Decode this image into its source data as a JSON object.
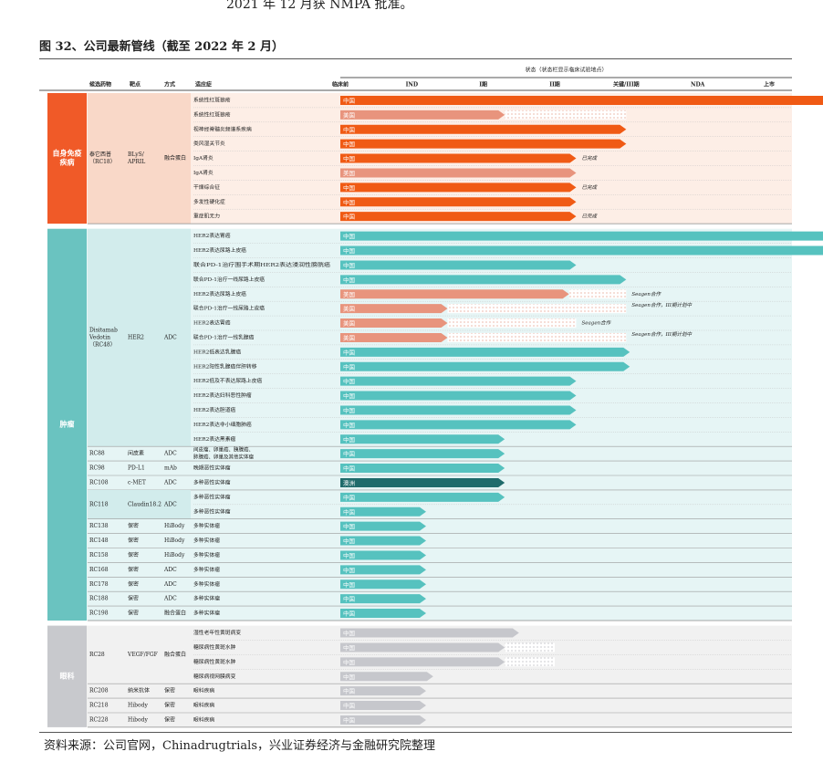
{
  "intro_text": "2021 年 12 月获 NMPA 批准。",
  "figure_title": "图 32、公司最新管线（截至 2022 年 2 月）",
  "source_note": "资料来源：公司官网，Chinadrugtrials，兴业证券经济与金融研究院整理",
  "colors": {
    "autoimmune_band": "#fdeee6",
    "oncology_band": "#e6f5f5",
    "ophthalmology_band": "#f1f1f1",
    "category_autoimmune": "#f05a28",
    "category_oncology": "#6ac3c0",
    "category_ophthalmology": "#c8c9cd",
    "china_orange": "#f05a14",
    "china_teal": "#56c2bf",
    "us_salmon": "#e8947d",
    "australia_dark": "#1f6b6b",
    "china_grey": "#c6c7cc"
  },
  "chart_data": {
    "type": "table",
    "headers": {
      "candidate": "候选药物",
      "target": "靶点",
      "modality": "方式",
      "indication": "适应症",
      "status_title": "状态（状态栏显示临床试验地点）"
    },
    "phases": [
      "临床前",
      "IND",
      "I期",
      "II期",
      "关键/III期",
      "NDA",
      "上市"
    ],
    "categories": [
      {
        "name": "自身免疫疾病",
        "color_key": "category_autoimmune",
        "drug_groups": [
          {
            "candidate": "泰它西普\n（RC18）",
            "target": "BLyS/\nAPRIL",
            "modality": "融合蛋白",
            "rows": [
              {
                "indication": "系统性红斑狼疮",
                "region": "中国",
                "progress": 6.9,
                "color_key": "china_orange"
              },
              {
                "indication": "系统性红斑狼疮",
                "region": "美国",
                "progress": 2.3,
                "planned": 4.0,
                "color_key": "us_salmon"
              },
              {
                "indication": "视神经脊髓炎频谱系疾病",
                "region": "中国",
                "progress": 4.0,
                "color_key": "china_orange"
              },
              {
                "indication": "类风湿关节炎",
                "region": "中国",
                "progress": 4.0,
                "color_key": "china_orange"
              },
              {
                "indication": "IgA肾炎",
                "region": "中国",
                "progress": 3.3,
                "color_key": "china_orange",
                "note": "已完成"
              },
              {
                "indication": "IgA肾炎",
                "region": "美国",
                "progress": 3.3,
                "color_key": "us_salmon"
              },
              {
                "indication": "干燥综合征",
                "region": "中国",
                "progress": 3.3,
                "color_key": "china_orange",
                "note": "已完成"
              },
              {
                "indication": "多发性硬化症",
                "region": "中国",
                "progress": 3.3,
                "color_key": "china_orange"
              },
              {
                "indication": "重症肌无力",
                "region": "中国",
                "progress": 3.3,
                "color_key": "china_orange",
                "note": "已完成"
              }
            ]
          }
        ]
      },
      {
        "name": "肿瘤",
        "color_key": "category_oncology",
        "drug_groups": [
          {
            "candidate": "Disitamab\nVedotin\n（RC48）",
            "target": "HER2",
            "modality": "ADC",
            "rows": [
              {
                "indication": "HER2表达胃癌",
                "region": "中国",
                "progress": 6.95,
                "color_key": "china_teal"
              },
              {
                "indication": "HER2表达尿路上皮癌",
                "region": "中国",
                "progress": 6.95,
                "color_key": "china_teal"
              },
              {
                "indication": "联合PD-1治疗围手术期HER2表达浸润性膀胱癌",
                "region": "中国",
                "progress": 3.3,
                "color_key": "china_teal"
              },
              {
                "indication": "联合PD-1治疗一线尿路上皮癌",
                "region": "中国",
                "progress": 4.0,
                "color_key": "china_teal"
              },
              {
                "indication": "HER2表达尿路上皮癌",
                "region": "美国",
                "progress": 3.2,
                "planned": 4.0,
                "color_key": "us_salmon",
                "note": "Seagen合作"
              },
              {
                "indication": "联合PD-1治疗一线尿路上皮癌",
                "region": "美国",
                "progress": 1.5,
                "planned": 4.0,
                "color_key": "us_salmon",
                "note": "Seagen合作，III期计划中"
              },
              {
                "indication": "HER2表达胃癌",
                "region": "美国",
                "progress": 1.5,
                "planned": 3.3,
                "color_key": "us_salmon",
                "note": "Seagen合作"
              },
              {
                "indication": "联合PD-1治疗一线乳腺癌",
                "region": "美国",
                "progress": 1.5,
                "planned": 4.0,
                "color_key": "us_salmon",
                "note": "Seagen合作，III期计划中"
              },
              {
                "indication": "HER2低表达乳腺癌",
                "region": "中国",
                "progress": 4.05,
                "color_key": "china_teal"
              },
              {
                "indication": "HER2阳性乳腺癌伴肝转移",
                "region": "中国",
                "progress": 4.05,
                "color_key": "china_teal"
              },
              {
                "indication": "HER2低及不表达尿路上皮癌",
                "region": "中国",
                "progress": 3.3,
                "color_key": "china_teal"
              },
              {
                "indication": "HER2表达妇科恶性肿瘤",
                "region": "中国",
                "progress": 3.3,
                "color_key": "china_teal"
              },
              {
                "indication": "HER2表达胆道癌",
                "region": "中国",
                "progress": 3.3,
                "color_key": "china_teal"
              },
              {
                "indication": "HER2表达非小细胞肺癌",
                "region": "中国",
                "progress": 3.3,
                "color_key": "china_teal"
              },
              {
                "indication": "HER2表达黑素瘤",
                "region": "中国",
                "progress": 2.3,
                "color_key": "china_teal"
              }
            ]
          },
          {
            "candidate": "RC88",
            "target": "间皮素",
            "modality": "ADC",
            "rows": [
              {
                "indication": "间皮瘤、卵巢癌、胰腺癌、肺腺癌、卵巢及其他实体瘤",
                "region": "中国",
                "progress": 2.3,
                "color_key": "china_teal"
              }
            ]
          },
          {
            "candidate": "RC98",
            "target": "PD-L1",
            "modality": "mAb",
            "rows": [
              {
                "indication": "晚期恶性实体瘤",
                "region": "中国",
                "progress": 2.3,
                "color_key": "china_teal"
              }
            ]
          },
          {
            "candidate": "RC108",
            "target": "c-MET",
            "modality": "ADC",
            "rows": [
              {
                "indication": "多种恶性实体瘤",
                "region": "澳洲",
                "progress": 2.3,
                "color_key": "australia_dark"
              }
            ]
          },
          {
            "candidate": "RC118",
            "target": "Claudin18.2",
            "modality": "ADC",
            "rows": [
              {
                "indication": "多种恶性实体瘤",
                "region": "中国",
                "progress": 2.3,
                "color_key": "china_teal"
              },
              {
                "indication": "多种恶性实体瘤",
                "region": "中国",
                "progress": 1.2,
                "color_key": "china_teal"
              }
            ]
          },
          {
            "candidate": "RC138",
            "target": "保密",
            "modality": "HiBody",
            "rows": [
              {
                "indication": "多种实体瘤",
                "region": "中国",
                "progress": 1.2,
                "color_key": "china_teal"
              }
            ]
          },
          {
            "candidate": "RC148",
            "target": "保密",
            "modality": "HiBody",
            "rows": [
              {
                "indication": "多种实体瘤",
                "region": "中国",
                "progress": 1.2,
                "color_key": "china_teal"
              }
            ]
          },
          {
            "candidate": "RC158",
            "target": "保密",
            "modality": "HiBody",
            "rows": [
              {
                "indication": "多种实体瘤",
                "region": "中国",
                "progress": 1.2,
                "color_key": "china_teal"
              }
            ]
          },
          {
            "candidate": "RC168",
            "target": "保密",
            "modality": "ADC",
            "rows": [
              {
                "indication": "多种实体瘤",
                "region": "中国",
                "progress": 1.2,
                "color_key": "china_teal"
              }
            ]
          },
          {
            "candidate": "RC178",
            "target": "保密",
            "modality": "ADC",
            "rows": [
              {
                "indication": "多种实体瘤",
                "region": "中国",
                "progress": 1.2,
                "color_key": "china_teal"
              }
            ]
          },
          {
            "candidate": "RC188",
            "target": "保密",
            "modality": "ADC",
            "rows": [
              {
                "indication": "多种实体瘤",
                "region": "中国",
                "progress": 1.2,
                "color_key": "china_teal"
              }
            ]
          },
          {
            "candidate": "RC198",
            "target": "保密",
            "modality": "融合蛋白",
            "rows": [
              {
                "indication": "多种实体瘤",
                "region": "中国",
                "progress": 1.2,
                "color_key": "china_teal"
              }
            ]
          }
        ]
      },
      {
        "name": "眼科",
        "color_key": "category_ophthalmology",
        "drug_groups": [
          {
            "candidate": "RC28",
            "target": "VEGF/FGF",
            "modality": "融合蛋白",
            "rows": [
              {
                "indication": "湿性老年性黄斑病变",
                "region": "中国",
                "progress": 2.5,
                "color_key": "china_grey"
              },
              {
                "indication": "糖尿病性黄斑水肿",
                "region": "中国",
                "progress": 2.3,
                "planned": 3.0,
                "color_key": "china_grey"
              },
              {
                "indication": "糖尿病性黄斑水肿",
                "region": "中国",
                "progress": 2.3,
                "planned": 3.0,
                "color_key": "china_grey"
              },
              {
                "indication": "糖尿病视网膜病变",
                "region": "中国",
                "progress": 1.3,
                "color_key": "china_grey"
              }
            ]
          },
          {
            "candidate": "RC208",
            "target": "纳米抗体",
            "modality": "保密",
            "rows": [
              {
                "indication": "眼科疾病",
                "region": "中国",
                "progress": 1.2,
                "color_key": "china_grey"
              }
            ]
          },
          {
            "candidate": "RC218",
            "target": "Hibody",
            "modality": "保密",
            "rows": [
              {
                "indication": "眼科疾病",
                "region": "中国",
                "progress": 1.2,
                "color_key": "china_grey"
              }
            ]
          },
          {
            "candidate": "RC228",
            "target": "Hibody",
            "modality": "保密",
            "rows": [
              {
                "indication": "眼科疾病",
                "region": "中国",
                "progress": 1.2,
                "color_key": "china_grey"
              }
            ]
          }
        ]
      }
    ]
  }
}
